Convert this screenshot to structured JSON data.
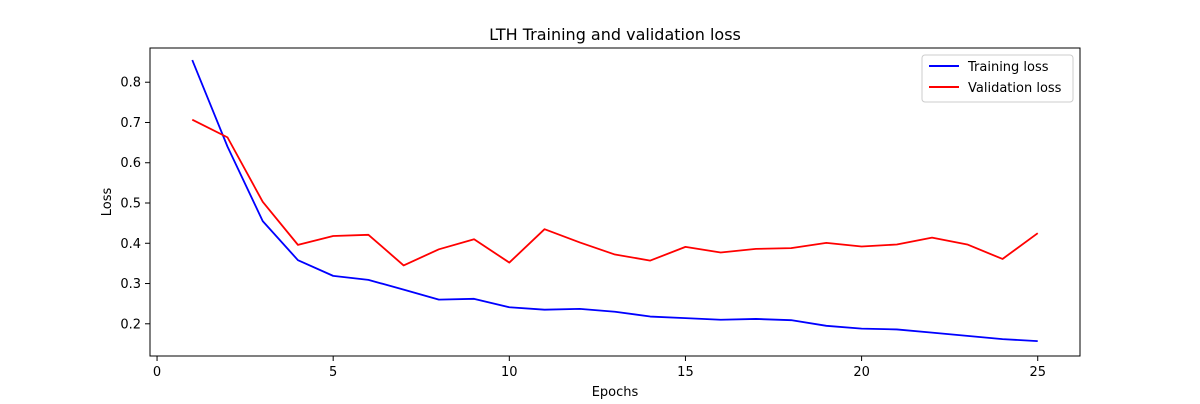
{
  "chart_data": {
    "type": "line",
    "title": "LTH Training and validation loss",
    "xlabel": "Epochs",
    "ylabel": "Loss",
    "xlim": [
      -0.2,
      26.2
    ],
    "ylim": [
      0.12,
      0.885
    ],
    "x_ticks": [
      0,
      5,
      10,
      15,
      20,
      25
    ],
    "y_ticks": [
      0.2,
      0.3,
      0.4,
      0.5,
      0.6,
      0.7,
      0.8
    ],
    "grid": false,
    "legend_position": "upper right",
    "x": [
      1,
      2,
      3,
      4,
      5,
      6,
      7,
      8,
      9,
      10,
      11,
      12,
      13,
      14,
      15,
      16,
      17,
      18,
      19,
      20,
      21,
      22,
      23,
      24,
      25
    ],
    "series": [
      {
        "name": "Training loss",
        "color": "#0000ff",
        "values": [
          0.855,
          0.64,
          0.455,
          0.358,
          0.319,
          0.309,
          0.285,
          0.26,
          0.262,
          0.241,
          0.235,
          0.237,
          0.23,
          0.218,
          0.214,
          0.21,
          0.212,
          0.209,
          0.195,
          0.188,
          0.186,
          0.178,
          0.17,
          0.162,
          0.157
        ]
      },
      {
        "name": "Validation loss",
        "color": "#ff0000",
        "values": [
          0.707,
          0.663,
          0.503,
          0.396,
          0.418,
          0.421,
          0.345,
          0.385,
          0.41,
          0.352,
          0.435,
          0.402,
          0.372,
          0.357,
          0.391,
          0.377,
          0.386,
          0.388,
          0.401,
          0.392,
          0.397,
          0.414,
          0.397,
          0.361,
          0.425
        ]
      }
    ]
  }
}
